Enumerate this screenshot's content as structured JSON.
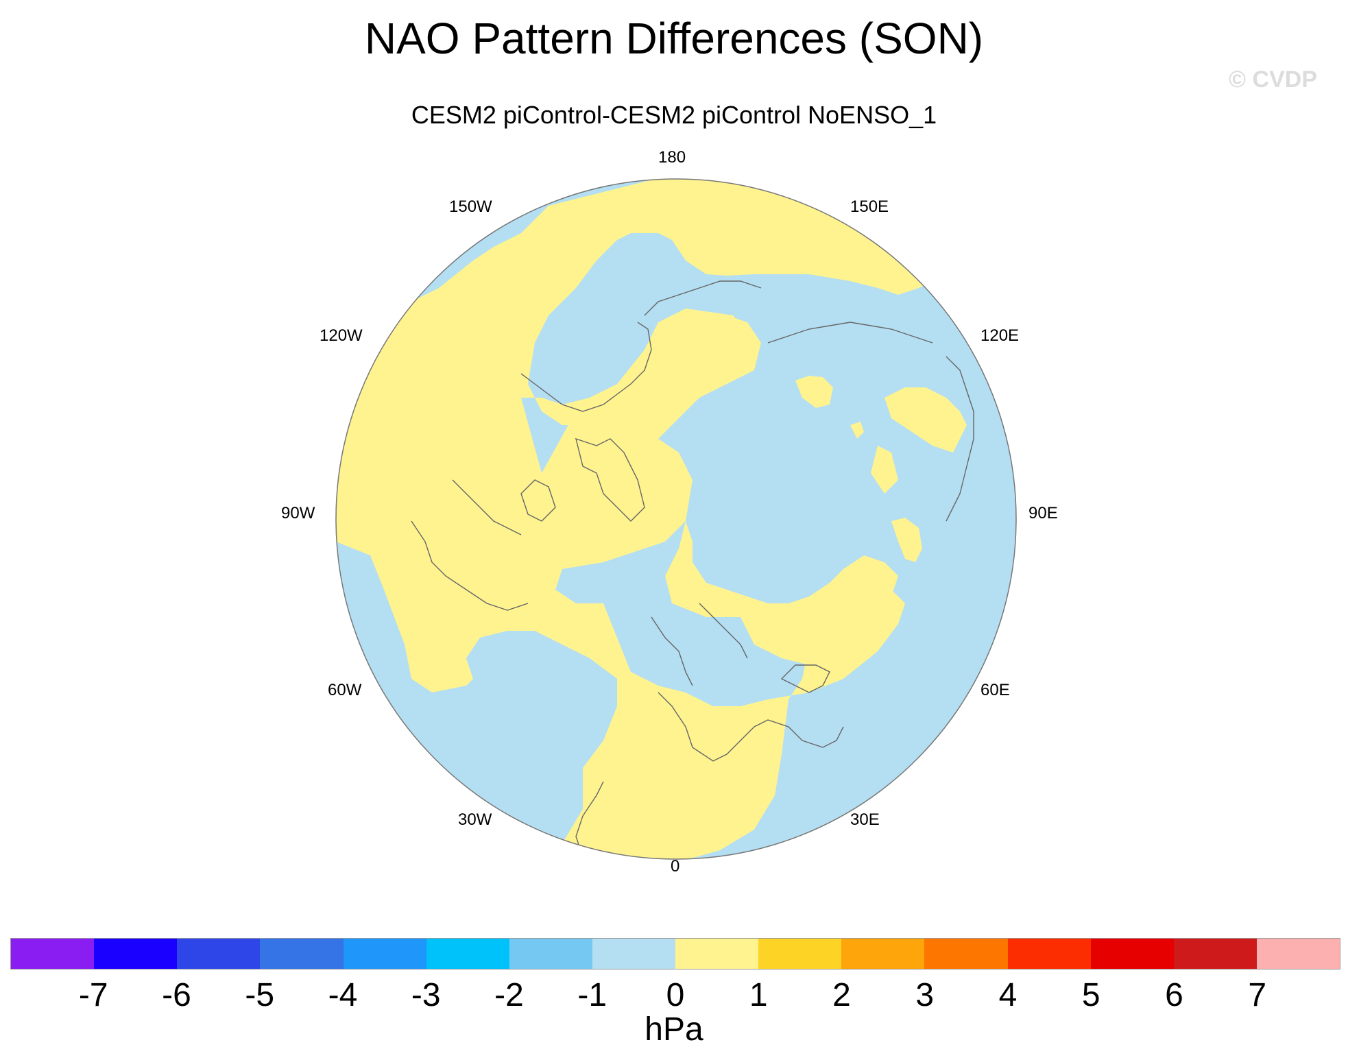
{
  "title": "NAO Pattern Differences (SON)",
  "watermark": "© CVDP",
  "subtitle": "CESM2 piControl-CESM2 piControl NoENSO_1",
  "map": {
    "projection": "north polar stereographic",
    "center_longitude": 0,
    "longitude_labels": {
      "deg_0": "0",
      "deg_30e": "30E",
      "deg_60e": "60E",
      "deg_90e": "90E",
      "deg_120e": "120E",
      "deg_150e": "150E",
      "deg_180": "180",
      "deg_150w": "150W",
      "deg_120w": "120W",
      "deg_90w": "90W",
      "deg_60w": "60W",
      "deg_30w": "30W"
    },
    "field_colors": {
      "positive_0_to_1": "#fef38f",
      "negative_minus1_to_0": "#b4def2",
      "coastline": "#666666",
      "boundary": "#777777"
    }
  },
  "colorbar": {
    "units": "hPa",
    "tick_labels": [
      "-7",
      "-6",
      "-5",
      "-4",
      "-3",
      "-2",
      "-1",
      "0",
      "1",
      "2",
      "3",
      "4",
      "5",
      "6",
      "7"
    ],
    "colors": [
      "#8a1df2",
      "#1a00ff",
      "#2e45e8",
      "#3574e7",
      "#1e96fa",
      "#00c2fb",
      "#74c8f2",
      "#b4def2",
      "#fef38f",
      "#fdd426",
      "#fda50a",
      "#fd7600",
      "#fc2d00",
      "#e60000",
      "#ce1a1a",
      "#fdb0b0"
    ]
  }
}
